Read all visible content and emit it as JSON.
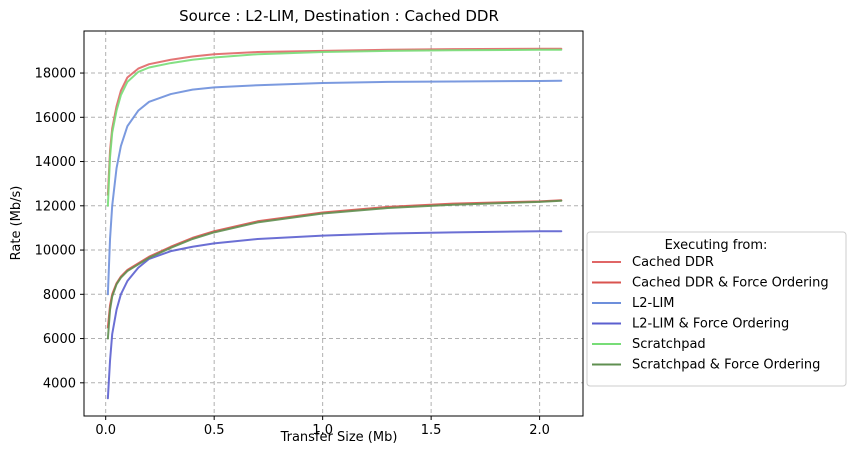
{
  "chart_data": {
    "type": "line",
    "title": "Source : L2-LIM, Destination : Cached DDR",
    "xlabel": "Transfer Size (Mb)",
    "ylabel": "Rate (Mb/s)",
    "xlim": [
      -0.1,
      2.2
    ],
    "ylim": [
      2500,
      19900
    ],
    "xticks": [
      0.0,
      0.5,
      1.0,
      1.5,
      2.0
    ],
    "xtick_labels": [
      "0.0",
      "0.5",
      "1.0",
      "1.5",
      "2.0"
    ],
    "yticks": [
      4000,
      6000,
      8000,
      10000,
      12000,
      14000,
      16000,
      18000
    ],
    "ytick_labels": [
      "4000",
      "6000",
      "8000",
      "10000",
      "12000",
      "14000",
      "16000",
      "18000"
    ],
    "grid": true,
    "legend_title": "Executing from:",
    "legend_position": "outside-right-bottom",
    "series": [
      {
        "name": "Cached DDR",
        "color": "#e06666",
        "x": [
          0.01,
          0.02,
          0.03,
          0.05,
          0.07,
          0.1,
          0.15,
          0.2,
          0.3,
          0.4,
          0.5,
          0.7,
          1.0,
          1.3,
          1.6,
          2.0,
          2.1
        ],
        "y": [
          12500,
          14500,
          15500,
          16500,
          17200,
          17800,
          18200,
          18400,
          18600,
          18750,
          18850,
          18950,
          19000,
          19050,
          19080,
          19100,
          19100
        ]
      },
      {
        "name": "Cached DDR & Force Ordering",
        "color": "#d9534f",
        "x": [
          0.01,
          0.02,
          0.03,
          0.05,
          0.07,
          0.1,
          0.15,
          0.2,
          0.3,
          0.4,
          0.5,
          0.7,
          1.0,
          1.3,
          1.6,
          2.0,
          2.1
        ],
        "y": [
          6500,
          7500,
          8000,
          8500,
          8800,
          9100,
          9400,
          9700,
          10150,
          10550,
          10850,
          11300,
          11700,
          11950,
          12100,
          12200,
          12250
        ]
      },
      {
        "name": "L2-LIM",
        "color": "#6d8fdb",
        "x": [
          0.01,
          0.02,
          0.03,
          0.05,
          0.07,
          0.1,
          0.15,
          0.2,
          0.3,
          0.4,
          0.5,
          0.7,
          1.0,
          1.3,
          1.6,
          2.0,
          2.1
        ],
        "y": [
          8000,
          10500,
          12000,
          13700,
          14700,
          15600,
          16300,
          16700,
          17050,
          17250,
          17350,
          17450,
          17550,
          17600,
          17620,
          17640,
          17650
        ]
      },
      {
        "name": "L2-LIM & Force Ordering",
        "color": "#5b5fcf",
        "x": [
          0.01,
          0.02,
          0.03,
          0.05,
          0.07,
          0.1,
          0.15,
          0.2,
          0.3,
          0.4,
          0.5,
          0.7,
          1.0,
          1.3,
          1.6,
          2.0,
          2.1
        ],
        "y": [
          3300,
          5000,
          6200,
          7300,
          8000,
          8600,
          9200,
          9600,
          9950,
          10150,
          10300,
          10500,
          10650,
          10750,
          10800,
          10850,
          10850
        ]
      },
      {
        "name": "Scratchpad",
        "color": "#77dd77",
        "x": [
          0.01,
          0.02,
          0.03,
          0.05,
          0.07,
          0.1,
          0.15,
          0.2,
          0.3,
          0.4,
          0.5,
          0.7,
          1.0,
          1.3,
          1.6,
          2.0,
          2.1
        ],
        "y": [
          12000,
          14200,
          15300,
          16300,
          17000,
          17600,
          18050,
          18250,
          18450,
          18600,
          18700,
          18850,
          18950,
          19000,
          19030,
          19050,
          19050
        ]
      },
      {
        "name": "Scratchpad & Force Ordering",
        "color": "#5f8f50",
        "x": [
          0.01,
          0.02,
          0.03,
          0.05,
          0.07,
          0.1,
          0.15,
          0.2,
          0.3,
          0.4,
          0.5,
          0.7,
          1.0,
          1.3,
          1.6,
          2.0,
          2.1
        ],
        "y": [
          6000,
          7300,
          7900,
          8450,
          8750,
          9050,
          9350,
          9650,
          10100,
          10500,
          10800,
          11250,
          11650,
          11900,
          12050,
          12180,
          12230
        ]
      }
    ]
  }
}
